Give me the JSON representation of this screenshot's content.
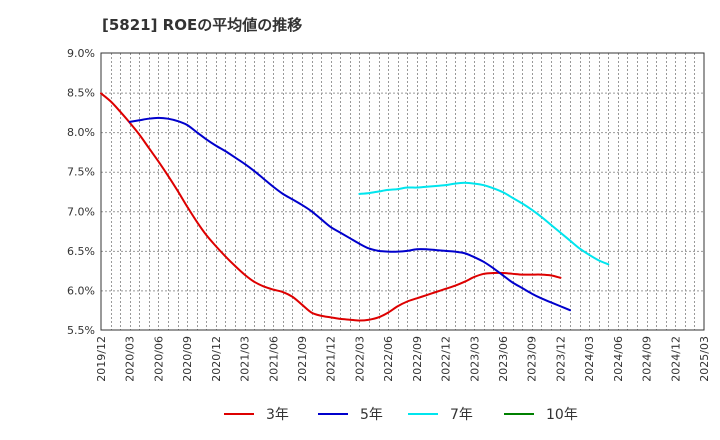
{
  "chart_data": {
    "type": "line",
    "title": "[5821]  ROEの平均値の推移",
    "xlabel": "",
    "ylabel": "",
    "ylim": [
      5.5,
      9.0
    ],
    "y_ticks": [
      "9.0%",
      "8.5%",
      "8.0%",
      "7.5%",
      "7.0%",
      "6.5%",
      "6.0%",
      "5.5%"
    ],
    "y_tick_values": [
      9.0,
      8.5,
      8.0,
      7.5,
      7.0,
      6.5,
      6.0,
      5.5
    ],
    "x_ticks": [
      "2019/12",
      "2020/03",
      "2020/06",
      "2020/09",
      "2020/12",
      "2021/03",
      "2021/06",
      "2021/09",
      "2021/12",
      "2022/03",
      "2022/06",
      "2022/09",
      "2022/12",
      "2023/03",
      "2023/06",
      "2023/09",
      "2023/12",
      "2024/03",
      "2024/06",
      "2024/09",
      "2024/12",
      "2025/03"
    ],
    "grid": true,
    "legend_position": "bottom",
    "series": [
      {
        "name": "3年",
        "color": "#dd0000",
        "start_index": 0,
        "values": [
          8.49,
          8.39,
          8.26,
          8.12,
          7.97,
          7.8,
          7.63,
          7.45,
          7.26,
          7.06,
          6.87,
          6.7,
          6.56,
          6.43,
          6.31,
          6.2,
          6.11,
          6.05,
          6.01,
          5.98,
          5.92,
          5.82,
          5.72,
          5.68,
          5.66,
          5.64,
          5.63,
          5.62,
          5.63,
          5.66,
          5.72,
          5.8,
          5.86,
          5.9,
          5.94,
          5.98,
          6.02,
          6.06,
          6.11,
          6.17,
          6.21,
          6.22,
          6.22,
          6.21,
          6.2,
          6.2,
          6.2,
          6.19,
          6.16
        ]
      },
      {
        "name": "5年",
        "color": "#0000cc",
        "start_index": 3,
        "values": [
          8.13,
          8.15,
          8.17,
          8.18,
          8.17,
          8.14,
          8.09,
          8.0,
          7.91,
          7.83,
          7.76,
          7.68,
          7.6,
          7.51,
          7.41,
          7.31,
          7.22,
          7.15,
          7.08,
          7.0,
          6.9,
          6.8,
          6.73,
          6.66,
          6.59,
          6.53,
          6.5,
          6.49,
          6.49,
          6.5,
          6.52,
          6.52,
          6.51,
          6.5,
          6.49,
          6.47,
          6.42,
          6.36,
          6.28,
          6.19,
          6.1,
          6.03,
          5.96,
          5.9,
          5.85,
          5.8,
          5.75
        ]
      },
      {
        "name": "7年",
        "color": "#00e5ee",
        "start_index": 27,
        "values": [
          7.22,
          7.23,
          7.25,
          7.27,
          7.28,
          7.3,
          7.3,
          7.31,
          7.32,
          7.33,
          7.35,
          7.36,
          7.35,
          7.33,
          7.29,
          7.24,
          7.17,
          7.1,
          7.02,
          6.93,
          6.83,
          6.73,
          6.63,
          6.53,
          6.45,
          6.38,
          6.33
        ]
      },
      {
        "name": "10年",
        "color": "#008000",
        "start_index": 0,
        "values": []
      }
    ]
  }
}
